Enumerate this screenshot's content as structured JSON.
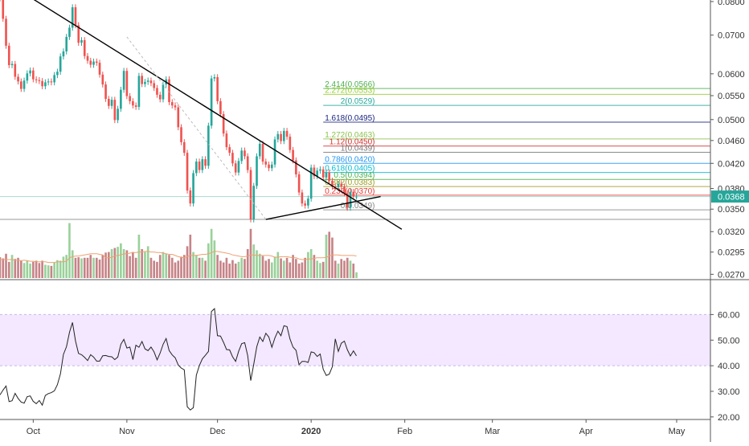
{
  "chart_data": {
    "type": "candlestick",
    "price_axis": {
      "ticks": [
        "0.0800",
        "0.0700",
        "0.0600",
        "0.0550",
        "0.0500",
        "0.0460",
        "0.0420",
        "0.0380",
        "0.0350",
        "0.0320",
        "0.0295",
        "0.0270"
      ],
      "scale": "log",
      "ylim": [
        0.0266,
        0.0805
      ]
    },
    "time_axis": {
      "ticks": [
        "Oct",
        "Nov",
        "Dec",
        "2020",
        "Feb",
        "Mar",
        "Apr",
        "May"
      ],
      "bold": [
        "2020"
      ]
    },
    "last_price": {
      "label": "0.0368",
      "value": 0.0368,
      "color": "#26a69a"
    },
    "fib_levels": [
      {
        "label": "2.414(0.0566)",
        "value": 0.0566,
        "color": "#4caf50"
      },
      {
        "label": "2.272(0.0553)",
        "value": 0.0553,
        "color": "#9acd32"
      },
      {
        "label": "2(0.0529)",
        "value": 0.0529,
        "color": "#26a69a"
      },
      {
        "label": "1.618(0.0495)",
        "value": 0.0495,
        "color": "#1a237e"
      },
      {
        "label": "1.272(0.0463)",
        "value": 0.0463,
        "color": "#8bc34a"
      },
      {
        "label": "1.12(0.0450)",
        "value": 0.045,
        "color": "#d32f2f"
      },
      {
        "label": "1(0.0439)",
        "value": 0.0439,
        "color": "#777777"
      },
      {
        "label": "0.786(0.0420)",
        "value": 0.042,
        "color": "#2196f3"
      },
      {
        "label": "0.618(0.0405)",
        "value": 0.0405,
        "color": "#00bcd4"
      },
      {
        "label": "0.5(0.0394)",
        "value": 0.0394,
        "color": "#4caf50"
      },
      {
        "label": "0.382(0.0383)",
        "value": 0.0383,
        "color": "#9e9d24"
      },
      {
        "label": "0.236(0.0370)",
        "value": 0.037,
        "color": "#e53935"
      },
      {
        "label": "0(0.0349)",
        "value": 0.0349,
        "color": "#888888"
      }
    ],
    "horizontal_lines": [
      0.0368,
      0.0336
    ],
    "trendlines": [
      {
        "from": [
          "2019-09-29",
          0.082
        ],
        "to": [
          "2020-01-31",
          0.0323
        ],
        "color": "#000000"
      },
      {
        "from": [
          "2019-12-17",
          0.0336
        ],
        "to": [
          "2020-01-24",
          0.0368
        ],
        "color": "#000000"
      },
      {
        "from": [
          "2019-11-01",
          0.0695
        ],
        "to": [
          "2019-12-17",
          0.0336
        ],
        "color": "#bbbbbb",
        "dashed": true
      }
    ],
    "price_series": {
      "start": "2019-09-20",
      "close": [
        0.081,
        0.0747,
        0.0671,
        0.0621,
        0.0624,
        0.0593,
        0.0582,
        0.0565,
        0.0584,
        0.0601,
        0.0608,
        0.0587,
        0.0585,
        0.0583,
        0.0571,
        0.058,
        0.0582,
        0.058,
        0.0597,
        0.0605,
        0.0643,
        0.0656,
        0.0695,
        0.0721,
        0.0782,
        0.0728,
        0.0679,
        0.0686,
        0.0644,
        0.0632,
        0.0622,
        0.063,
        0.0627,
        0.0598,
        0.0575,
        0.0543,
        0.0528,
        0.0541,
        0.0499,
        0.0522,
        0.0563,
        0.0607,
        0.0549,
        0.0538,
        0.0529,
        0.0526,
        0.0595,
        0.0576,
        0.0581,
        0.0584,
        0.0578,
        0.0567,
        0.0552,
        0.0542,
        0.0575,
        0.0587,
        0.0536,
        0.0529,
        0.0525,
        0.0485,
        0.0457,
        0.0438,
        0.0377,
        0.0358,
        0.0404,
        0.0423,
        0.0409,
        0.0427,
        0.0416,
        0.0488,
        0.0589,
        0.0592,
        0.0538,
        0.0511,
        0.0473,
        0.0448,
        0.0438,
        0.042,
        0.0405,
        0.0424,
        0.0442,
        0.0432,
        0.0409,
        0.0336,
        0.0384,
        0.0432,
        0.0454,
        0.0423,
        0.0418,
        0.0412,
        0.0418,
        0.0462,
        0.0472,
        0.0459,
        0.0478,
        0.0467,
        0.0443,
        0.0425,
        0.0402,
        0.0374,
        0.0358,
        0.0355,
        0.0365,
        0.0413,
        0.0399,
        0.0408,
        0.041,
        0.0397,
        0.0405,
        0.0392,
        0.0383,
        0.0382,
        0.0387,
        0.0383,
        0.0373,
        0.0352,
        0.0375,
        0.0368,
        0.0368
      ],
      "volume": [
        0.36,
        0.34,
        0.42,
        0.28,
        0.4,
        0.33,
        0.35,
        0.3,
        0.26,
        0.3,
        0.25,
        0.28,
        0.3,
        0.26,
        0.3,
        0.23,
        0.22,
        0.21,
        0.27,
        0.31,
        0.3,
        0.37,
        0.4,
        0.95,
        0.48,
        0.35,
        0.36,
        0.34,
        0.35,
        0.35,
        0.4,
        0.35,
        0.35,
        0.32,
        0.4,
        0.44,
        0.45,
        0.5,
        0.52,
        0.54,
        0.6,
        0.5,
        0.48,
        0.38,
        0.45,
        0.35,
        0.75,
        0.5,
        0.45,
        0.55,
        0.35,
        0.3,
        0.28,
        0.4,
        0.45,
        0.42,
        0.4,
        0.35,
        0.27,
        0.3,
        0.37,
        0.4,
        0.55,
        0.75,
        0.45,
        0.4,
        0.35,
        0.35,
        0.3,
        0.6,
        0.85,
        0.65,
        0.4,
        0.3,
        0.27,
        0.35,
        0.25,
        0.31,
        0.25,
        0.28,
        0.35,
        0.33,
        0.5,
        0.85,
        0.58,
        0.48,
        0.42,
        0.38,
        0.3,
        0.33,
        0.27,
        0.37,
        0.45,
        0.34,
        0.3,
        0.35,
        0.27,
        0.4,
        0.33,
        0.25,
        0.27,
        0.35,
        0.45,
        0.5,
        0.4,
        0.3,
        0.26,
        0.28,
        0.75,
        0.8,
        0.7,
        0.3,
        0.25,
        0.33,
        0.3,
        0.35,
        0.3,
        0.25,
        0.1
      ],
      "rsi": [
        28.6,
        30.5,
        32.1,
        26.0,
        26.3,
        29.2,
        27.2,
        25.8,
        25.4,
        27.9,
        28.2,
        26.1,
        25.2,
        26.4,
        24.6,
        28.4,
        29.1,
        29.5,
        30.2,
        32.6,
        36.8,
        44.4,
        47.4,
        53.1,
        56.9,
        49.6,
        44.8,
        44.3,
        43.3,
        42.0,
        44.3,
        43.4,
        41.8,
        41.8,
        43.9,
        44.0,
        43.6,
        43.5,
        42.4,
        43.4,
        48.4,
        50.3,
        46.9,
        47.3,
        42.4,
        48.0,
        47.2,
        49.5,
        46.6,
        45.9,
        47.3,
        45.4,
        42.3,
        44.9,
        48.4,
        50.6,
        45.9,
        44.2,
        43.1,
        40.3,
        39.1,
        38.4,
        24.0,
        22.7,
        23.6,
        36.3,
        40.1,
        42.7,
        44.1,
        45.6,
        61.2,
        62.3,
        51.7,
        51.6,
        49.1,
        46.3,
        46.2,
        43.5,
        41.7,
        45.6,
        48.6,
        49.0,
        44.0,
        34.2,
        40.5,
        47.4,
        51.2,
        49.5,
        52.7,
        51.2,
        47.2,
        50.9,
        53.5,
        51.7,
        55.6,
        55.3,
        50.5,
        47.3,
        46.0,
        40.4,
        41.7,
        41.7,
        41.3,
        45.4,
        45.1,
        43.6,
        44.6,
        38.6,
        36.2,
        36.7,
        39.6,
        50.5,
        45.6,
        48.8,
        49.6,
        46.2,
        43.8,
        45.8,
        43.9
      ]
    },
    "volume_ma": [
      0.32,
      0.32,
      0.32,
      0.32,
      0.32,
      0.31,
      0.31,
      0.3,
      0.31,
      0.3,
      0.29,
      0.29,
      0.28,
      0.28,
      0.28,
      0.28,
      0.27,
      0.27,
      0.27,
      0.28,
      0.28,
      0.28,
      0.29,
      0.35,
      0.37,
      0.38,
      0.38,
      0.39,
      0.4,
      0.41,
      0.42,
      0.42,
      0.42,
      0.41,
      0.4,
      0.35,
      0.35,
      0.36,
      0.38,
      0.39,
      0.4,
      0.42,
      0.42,
      0.43,
      0.44,
      0.44,
      0.45,
      0.45,
      0.46,
      0.46,
      0.45,
      0.45,
      0.44,
      0.44,
      0.43,
      0.42,
      0.41,
      0.41,
      0.39,
      0.37,
      0.36,
      0.35,
      0.37,
      0.39,
      0.39,
      0.39,
      0.4,
      0.41,
      0.41,
      0.42,
      0.44,
      0.46,
      0.46,
      0.45,
      0.44,
      0.43,
      0.42,
      0.4,
      0.39,
      0.38,
      0.37,
      0.37,
      0.38,
      0.4,
      0.4,
      0.39,
      0.39,
      0.39,
      0.39,
      0.39,
      0.38,
      0.36,
      0.36,
      0.37,
      0.37,
      0.37,
      0.36,
      0.35,
      0.35,
      0.33,
      0.32,
      0.32,
      0.33,
      0.33,
      0.34,
      0.35,
      0.35,
      0.35,
      0.36,
      0.38,
      0.4,
      0.4,
      0.4,
      0.39,
      0.39,
      0.39,
      0.39,
      0.39,
      0.38
    ],
    "rsi_axis": {
      "ticks": [
        "60.00",
        "50.00",
        "40.00",
        "30.00",
        "20.00"
      ],
      "ylim": [
        19,
        73
      ],
      "band": [
        40,
        60
      ],
      "band_color": "#f3e8ff"
    },
    "colors": {
      "up": "#26a69a",
      "down": "#ef5350",
      "up_volume": "#8fcc8f",
      "down_volume": "#c0757a"
    }
  }
}
